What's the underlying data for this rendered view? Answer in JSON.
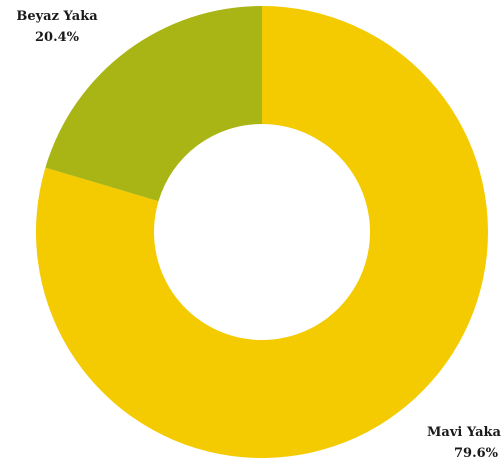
{
  "chart_data": {
    "type": "pie",
    "donut": true,
    "categories": [
      "Mavi Yaka",
      "Beyaz Yaka"
    ],
    "values": [
      79.6,
      20.4
    ],
    "value_labels": [
      "79.6%",
      "20.4%"
    ],
    "colors": [
      "#F4CB00",
      "#A9B515"
    ],
    "start_angle_deg": 0,
    "direction": "clockwise",
    "title": "",
    "legend": "none"
  }
}
